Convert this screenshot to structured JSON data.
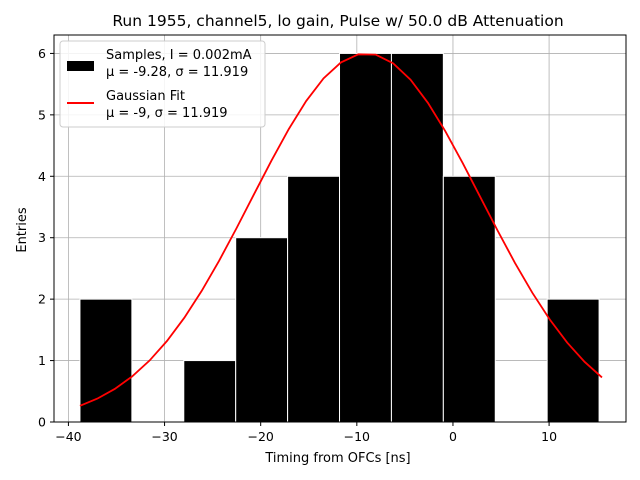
{
  "chart_data": {
    "type": "bar",
    "title": "Run 1955, channel5, lo gain, Pulse w/ 50.0 dB Attenuation",
    "xlabel": "Timing from OFCs [ns]",
    "ylabel": "Entries",
    "xlim": [
      -41.5,
      18.0
    ],
    "ylim": [
      0,
      6.3
    ],
    "xticks": [
      -40,
      -30,
      -20,
      -10,
      0,
      10
    ],
    "yticks": [
      0,
      1,
      2,
      3,
      4,
      5,
      6
    ],
    "grid": true,
    "legend_position": "upper-left",
    "histogram": {
      "name": "Samples, I = 0.002mA",
      "stats_label": "μ = -9.28, σ = 11.919",
      "color": "#000000",
      "edge_color": "#ffffff",
      "bins": [
        {
          "left": -38.8,
          "right": -33.4,
          "count": 2
        },
        {
          "left": -33.4,
          "right": -28.0,
          "count": 0
        },
        {
          "left": -28.0,
          "right": -22.6,
          "count": 1
        },
        {
          "left": -22.6,
          "right": -17.2,
          "count": 3
        },
        {
          "left": -17.2,
          "right": -11.8,
          "count": 4
        },
        {
          "left": -11.8,
          "right": -6.4,
          "count": 6
        },
        {
          "left": -6.4,
          "right": -1.0,
          "count": 6
        },
        {
          "left": -1.0,
          "right": 4.4,
          "count": 4
        },
        {
          "left": 4.4,
          "right": 9.8,
          "count": 0
        },
        {
          "left": 9.8,
          "right": 15.2,
          "count": 2
        }
      ]
    },
    "fit": {
      "name": "Gaussian Fit",
      "stats_label": "μ = -9, σ = 11.919",
      "color": "#ff0000",
      "mu": -9,
      "sigma": 11.919,
      "amplitude": 6.0,
      "x_range": [
        -38.8,
        15.5
      ]
    }
  }
}
